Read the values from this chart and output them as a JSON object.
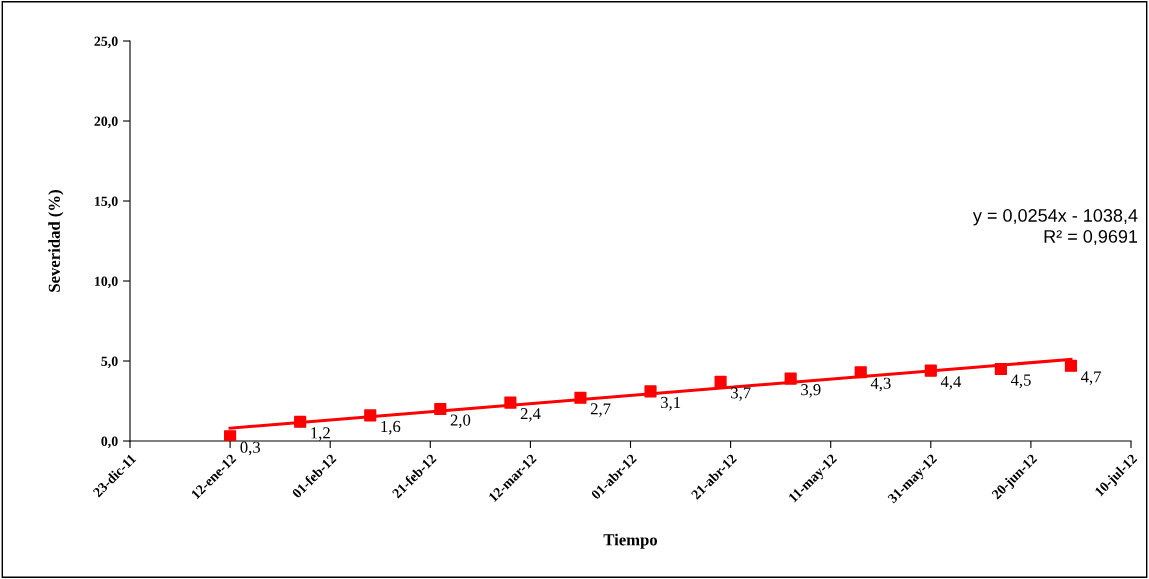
{
  "chart_data": {
    "type": "scatter",
    "xlabel": "Tiempo",
    "ylabel": "Severidad (%)",
    "annotations": [
      "y = 0,0254x - 1038,4",
      "R² = 0,9691"
    ],
    "x": [
      "2012-01-12",
      "2012-01-26",
      "2012-02-09",
      "2012-02-23",
      "2012-03-08",
      "2012-03-22",
      "2012-04-05",
      "2012-04-19",
      "2012-05-03",
      "2012-05-17",
      "2012-05-31",
      "2012-06-14",
      "2012-06-28"
    ],
    "series": [
      {
        "color": "#ff0000",
        "marker": "square",
        "values": [
          0.3,
          1.2,
          1.6,
          2.0,
          2.4,
          2.7,
          3.1,
          3.7,
          3.9,
          4.3,
          4.4,
          4.5,
          4.7
        ],
        "value_labels": [
          "0,3",
          "1,2",
          "1,6",
          "2,0",
          "2,4",
          "2,7",
          "3,1",
          "3,7",
          "3,9",
          "4,3",
          "4,4",
          "4,5",
          "4,7"
        ]
      },
      {
        "type": "line",
        "color": "#ff0000",
        "x": [
          "2012-01-12",
          "2012-06-28"
        ],
        "values": [
          0.8,
          5.1
        ]
      }
    ],
    "xlim": [
      "2011-12-23",
      "2012-07-10"
    ],
    "xticks": [
      {
        "value": "2011-12-23",
        "label": "23-dic-11"
      },
      {
        "value": "2012-01-12",
        "label": "12-ene-12"
      },
      {
        "value": "2012-02-01",
        "label": "01-feb-12"
      },
      {
        "value": "2012-02-21",
        "label": "21-feb-12"
      },
      {
        "value": "2012-03-12",
        "label": "12-mar-12"
      },
      {
        "value": "2012-04-01",
        "label": "01-abr-12"
      },
      {
        "value": "2012-04-21",
        "label": "21-abr-12"
      },
      {
        "value": "2012-05-11",
        "label": "11-may-12"
      },
      {
        "value": "2012-05-31",
        "label": "31-may-12"
      },
      {
        "value": "2012-06-20",
        "label": "20-jun-12"
      },
      {
        "value": "2012-07-10",
        "label": "10-jul-12"
      }
    ],
    "ylim": [
      0,
      25
    ],
    "yticks": [
      {
        "value": 0,
        "label": "0,0"
      },
      {
        "value": 5,
        "label": "5,0"
      },
      {
        "value": 10,
        "label": "10,0"
      },
      {
        "value": 15,
        "label": "15,0"
      },
      {
        "value": 20,
        "label": "20,0"
      },
      {
        "value": 25,
        "label": "25,0"
      }
    ],
    "grid": false,
    "legend": false
  }
}
